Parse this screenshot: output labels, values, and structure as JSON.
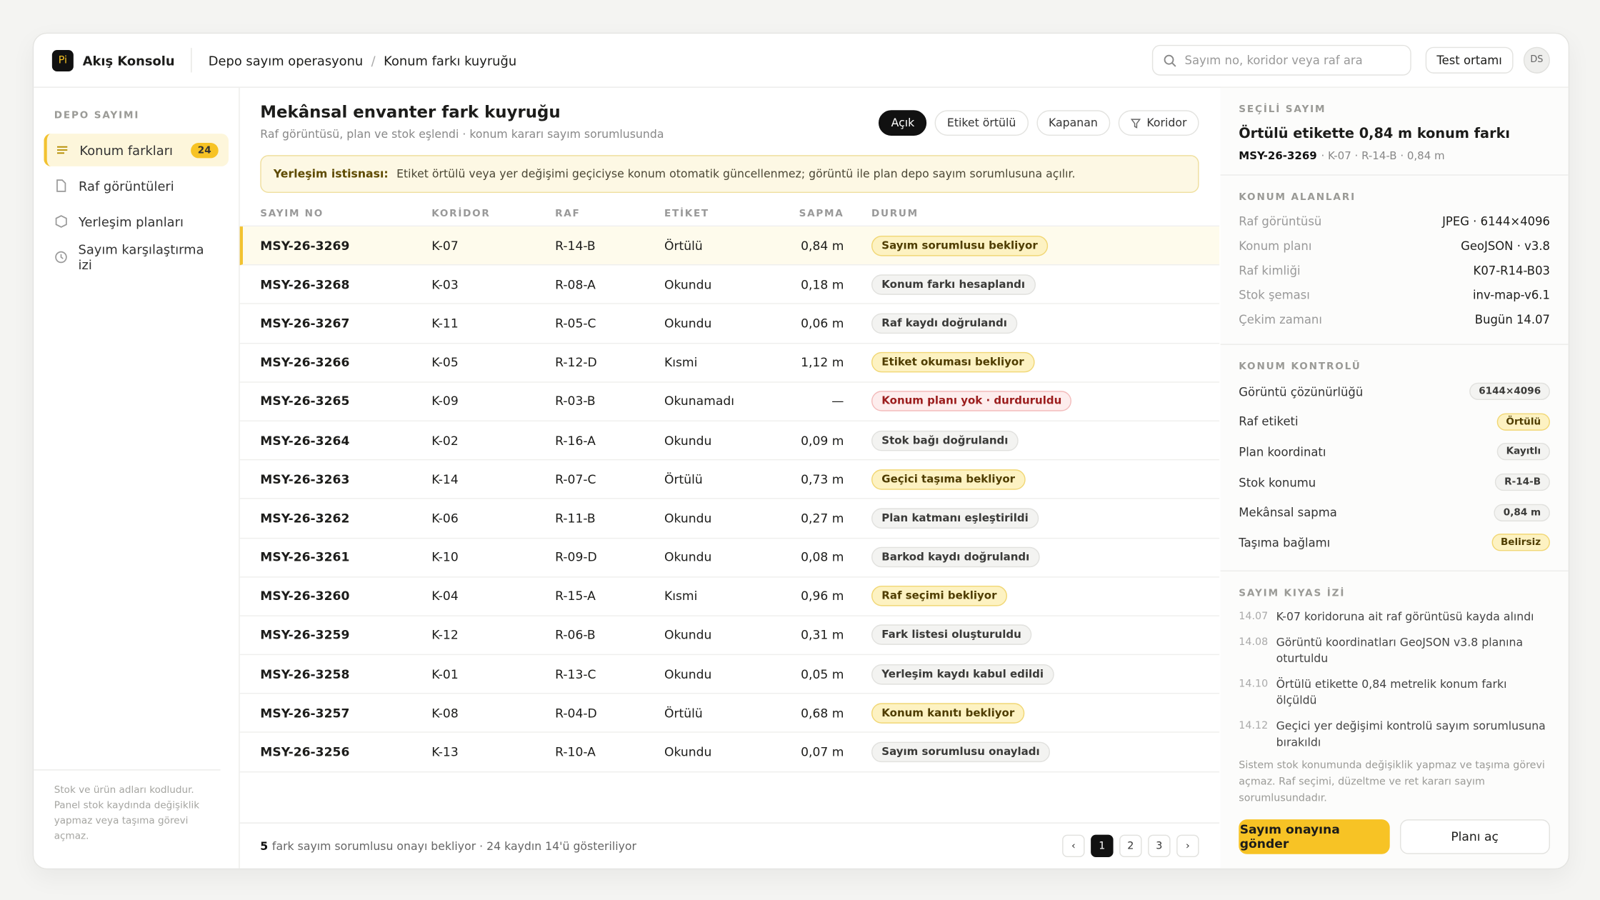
{
  "header": {
    "logo": "Pi",
    "brand": "Akış Konsolu",
    "breadcrumb": [
      "Depo sayım operasyonu",
      "Konum farkı kuyruğu"
    ],
    "breadcrumb_separator": "/",
    "search_placeholder": "Sayım no, koridor veya raf ara",
    "env": "Test ortamı",
    "avatar": "DS"
  },
  "sidebar": {
    "section": "DEPO SAYIMI",
    "items": [
      {
        "label": "Konum farkları",
        "badge": "24"
      },
      {
        "label": "Raf görüntüleri"
      },
      {
        "label": "Yerleşim planları"
      },
      {
        "label": "Sayım karşılaştırma izi"
      }
    ],
    "note": "Stok ve ürün adları kodludur. Panel stok kaydında değişiklik yapmaz veya taşıma görevi açmaz."
  },
  "main": {
    "title": "Mekânsal envanter fark kuyruğu",
    "subtitle": "Raf görüntüsü, plan ve stok eşlendi · konum kararı sayım sorumlusunda",
    "filters": [
      "Açık",
      "Etiket örtülü",
      "Kapanan",
      "Koridor"
    ],
    "alert": {
      "label": "Yerleşim istisnası:",
      "text": "Etiket örtülü veya yer değişimi geçiciyse konum otomatik güncellenmez; görüntü ile plan depo sayım sorumlusuna açılır."
    },
    "table": {
      "headers": [
        "SAYIM NO",
        "KORİDOR",
        "RAF",
        "ETİKET",
        "SAPMA",
        "DURUM"
      ],
      "rows": [
        [
          "MSY-26-3269",
          "K-07",
          "R-14-B",
          "Örtülü",
          "0,84 m",
          "Sayım sorumlusu bekliyor"
        ],
        [
          "MSY-26-3268",
          "K-03",
          "R-08-A",
          "Okundu",
          "0,18 m",
          "Konum farkı hesaplandı"
        ],
        [
          "MSY-26-3267",
          "K-11",
          "R-05-C",
          "Okundu",
          "0,06 m",
          "Raf kaydı doğrulandı"
        ],
        [
          "MSY-26-3266",
          "K-05",
          "R-12-D",
          "Kısmi",
          "1,12 m",
          "Etiket okuması bekliyor"
        ],
        [
          "MSY-26-3265",
          "K-09",
          "R-03-B",
          "Okunamadı",
          "—",
          "Konum planı yok · durduruldu"
        ],
        [
          "MSY-26-3264",
          "K-02",
          "R-16-A",
          "Okundu",
          "0,09 m",
          "Stok bağı doğrulandı"
        ],
        [
          "MSY-26-3263",
          "K-14",
          "R-07-C",
          "Örtülü",
          "0,73 m",
          "Geçici taşıma bekliyor"
        ],
        [
          "MSY-26-3262",
          "K-06",
          "R-11-B",
          "Okundu",
          "0,27 m",
          "Plan katmanı eşleştirildi"
        ],
        [
          "MSY-26-3261",
          "K-10",
          "R-09-D",
          "Okundu",
          "0,08 m",
          "Barkod kaydı doğrulandı"
        ],
        [
          "MSY-26-3260",
          "K-04",
          "R-15-A",
          "Kısmi",
          "0,96 m",
          "Raf seçimi bekliyor"
        ],
        [
          "MSY-26-3259",
          "K-12",
          "R-06-B",
          "Okundu",
          "0,31 m",
          "Fark listesi oluşturuldu"
        ],
        [
          "MSY-26-3258",
          "K-01",
          "R-13-C",
          "Okundu",
          "0,05 m",
          "Yerleşim kaydı kabul edildi"
        ],
        [
          "MSY-26-3257",
          "K-08",
          "R-04-D",
          "Örtülü",
          "0,68 m",
          "Konum kanıtı bekliyor"
        ],
        [
          "MSY-26-3256",
          "K-13",
          "R-10-A",
          "Okundu",
          "0,07 m",
          "Sayım sorumlusu onayladı"
        ]
      ],
      "tones": [
        "yellow",
        "gray",
        "gray",
        "yellow",
        "red",
        "gray",
        "yellow",
        "gray",
        "gray",
        "yellow",
        "gray",
        "gray",
        "yellow",
        "gray"
      ],
      "selected": 0
    },
    "footer": {
      "count": "5",
      "text": "fark sayım sorumlusu onayı bekliyor · 24 kaydın 14'ü gösteriliyor",
      "pages": [
        "‹",
        "1",
        "2",
        "3",
        "›"
      ],
      "current": 1
    }
  },
  "detail": {
    "section": "SEÇİLİ SAYIM",
    "title": "Örtülü etikette 0,84 m konum farkı",
    "id": "MSY-26-3269",
    "meta": "· K-07 · R-14-B · 0,84 m",
    "fields_title": "KONUM ALANLARI",
    "fields": [
      [
        "Raf görüntüsü",
        "JPEG · 6144×4096"
      ],
      [
        "Konum planı",
        "GeoJSON · v3.8"
      ],
      [
        "Raf kimliği",
        "K07-R14-B03"
      ],
      [
        "Stok şeması",
        "inv-map-v6.1"
      ],
      [
        "Çekim zamanı",
        "Bugün 14.07"
      ]
    ],
    "checks_title": "KONUM KONTROLÜ",
    "checks": [
      [
        "Görüntü çözünürlüğü",
        "6144×4096",
        "gray"
      ],
      [
        "Raf etiketi",
        "Örtülü",
        "yellow"
      ],
      [
        "Plan koordinatı",
        "Kayıtlı",
        "gray"
      ],
      [
        "Stok konumu",
        "R-14-B",
        "gray"
      ],
      [
        "Mekânsal sapma",
        "0,84 m",
        "gray"
      ],
      [
        "Taşıma bağlamı",
        "Belirsiz",
        "yellow"
      ]
    ],
    "trace_title": "SAYIM KIYAS İZİ",
    "trace": [
      [
        "14.07",
        "K-07 koridoruna ait raf görüntüsü kayda alındı"
      ],
      [
        "14.08",
        "Görüntü koordinatları GeoJSON v3.8 planına oturtuldu"
      ],
      [
        "14.10",
        "Örtülü etikette 0,84 metrelik konum farkı ölçüldü"
      ],
      [
        "14.12",
        "Geçici yer değişimi kontrolü sayım sorumlusuna bırakıldı"
      ]
    ],
    "note": "Sistem stok konumunda değişiklik yapmaz ve taşıma görevi açmaz. Raf seçimi, düzeltme ve ret kararı sayım sorumlusundadır.",
    "primary": "Sayım onayına gönder",
    "secondary": "Planı aç"
  }
}
